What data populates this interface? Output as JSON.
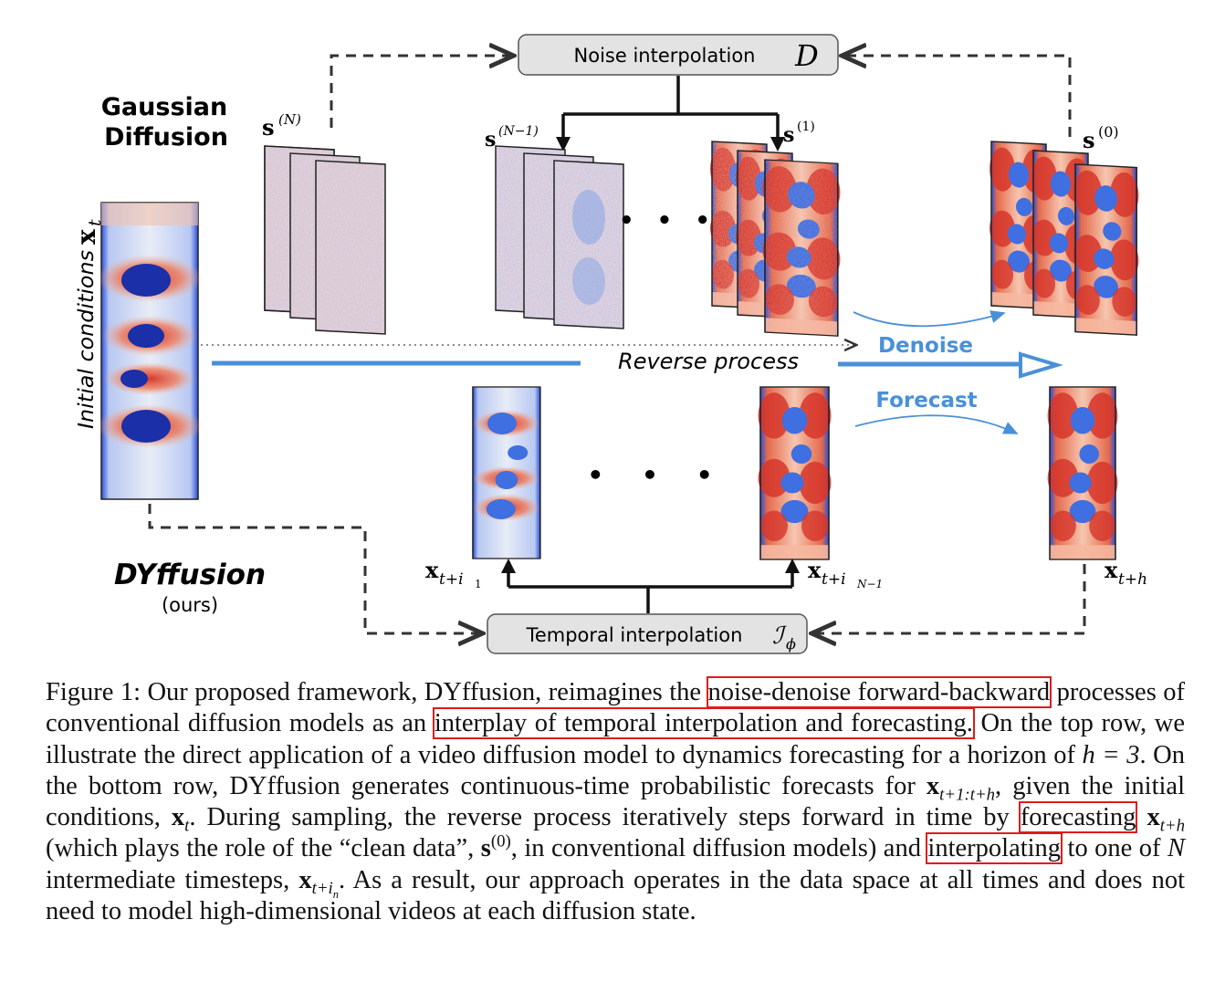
{
  "figure": {
    "noise_interp_box": "Noise interpolation",
    "noise_interp_symbol": "D",
    "temporal_interp_box": "Temporal interpolation",
    "temporal_interp_symbol": "ℐ",
    "temporal_interp_subscript": "ϕ",
    "gaussian_label_line1": "Gaussian",
    "gaussian_label_line2": "Diffusion",
    "dyffusion_label": "DYffusion",
    "ours_label": "(ours)",
    "initial_conditions_label": "Initial conditions",
    "x_t_symbol": "x",
    "x_t_sub": "t",
    "reverse_process_label": "Reverse process",
    "denoise_label": "Denoise",
    "forecast_label": "Forecast",
    "s_symbol": "s",
    "s_N_sup": "(N)",
    "s_N1_sup": "(N−1)",
    "s_1_sup": "(1)",
    "s_0_sup": "(0)",
    "x_ti1_sub": "t+i",
    "x_ti1_subsub": "1",
    "x_tiN1_sub": "t+i",
    "x_tiN1_subsub": "N−1",
    "x_th_sub": "t+h",
    "ellipsis": "• • •",
    "colors": {
      "blue_arrow": "#4a90d9",
      "highlight_box": "#e01b1b",
      "field_red": "#d6362a",
      "field_blue": "#3f6fe0",
      "field_navy": "#1a2fa8"
    }
  },
  "caption": {
    "intro": "Figure 1: Our proposed framework, DYffusion, reimagines the",
    "hl1": "noise-denoise forward-backward",
    "part2": "processes of conventional diffusion models as an",
    "hl2": "interplay of temporal interpolation and forecasting.",
    "part3": "On the top row, we illustrate the direct application of a video diffusion model to dynamics forecasting for a horizon of",
    "h_eq": "h = 3",
    "part4": ". On the bottom row, DYffusion generates continuous-time probabilistic forecasts for",
    "x_range": "x",
    "x_range_sub": "t+1:t+h",
    "part5": ", given the initial conditions,",
    "x_t": "x",
    "x_t_sub": "t",
    "part6": ". During sampling, the reverse process iteratively steps forward in time by",
    "hl3": "forecasting",
    "x_th": "x",
    "x_th_sub": "t+h",
    "part7": "(which plays the role of the “clean data”,",
    "s0": "s",
    "s0_sup": "(0)",
    "part8": ", in conventional diffusion models) and",
    "hl4": "interpolating",
    "part9": "to one of",
    "N": "N",
    "part10": "intermediate timesteps,",
    "x_tin": "x",
    "x_tin_sub": "t+i",
    "x_tin_subsub": "n",
    "part11": ". As a result, our approach operates in the data space at all times and does not need to model high-dimensional videos at each diffusion state."
  }
}
